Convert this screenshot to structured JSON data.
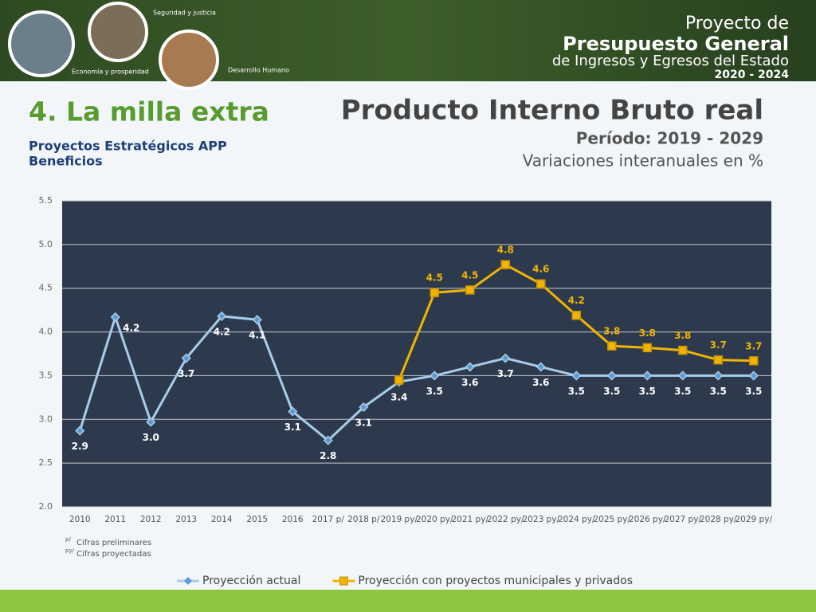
{
  "header": {
    "brand_line1": "Proyecto de",
    "brand_line2": "Presupuesto General",
    "brand_line3": "de Ingresos y Egresos del Estado",
    "brand_years": "2020 - 2024",
    "badges": [
      "Seguridad y justicia",
      "Economía y prosperidad",
      "Desarrollo Humano"
    ]
  },
  "section": {
    "title": "4. La milla extra",
    "subtitle1": "Proyectos Estratégicos APP",
    "subtitle2": "Beneficios"
  },
  "chart_data": {
    "type": "line",
    "title": "Producto Interno Bruto real",
    "subtitle": "Período: 2019 - 2029",
    "unit_note": "Variaciones interanuales en %",
    "categories": [
      "2010",
      "2011",
      "2012",
      "2013",
      "2014",
      "2015",
      "2016",
      "2017 p/",
      "2018 p/",
      "2019 py/",
      "2020 py/",
      "2021 py/",
      "2022 py/",
      "2023 py/",
      "2024 py/",
      "2025 py/",
      "2026 py/",
      "2027 py/",
      "2028 py/",
      "2029 py/"
    ],
    "series": [
      {
        "name": "Proyección actual",
        "color": "#a9cce8",
        "marker_color": "#5b9bd5",
        "marker": "diamond",
        "values": [
          2.87,
          4.17,
          2.97,
          3.7,
          4.18,
          4.14,
          3.09,
          2.76,
          3.14,
          3.43,
          3.5,
          3.6,
          3.7,
          3.6,
          3.5,
          3.5,
          3.5,
          3.5,
          3.5,
          3.5
        ],
        "value_labels": [
          "2.9",
          "4.2",
          "3.0",
          "3.7",
          "4.2",
          "4.1",
          "3.1",
          "2.8",
          "3.1",
          "3.4",
          "3.5",
          "3.6",
          "3.7",
          "3.6",
          "3.5",
          "3.5",
          "3.5",
          "3.5",
          "3.5",
          "3.5"
        ]
      },
      {
        "name": "Proyección con proyectos municipales y privados",
        "color": "#f0b400",
        "marker_color": "#c79200",
        "marker": "square",
        "values": [
          null,
          null,
          null,
          null,
          null,
          null,
          null,
          null,
          null,
          3.45,
          4.45,
          4.48,
          4.77,
          4.55,
          4.19,
          3.84,
          3.82,
          3.79,
          3.68,
          3.67
        ],
        "value_labels": [
          null,
          null,
          null,
          null,
          null,
          null,
          null,
          null,
          null,
          null,
          "4.5",
          "4.5",
          "4.8",
          "4.6",
          "4.2",
          "3.8",
          "3.8",
          "3.8",
          "3.7",
          "3.7"
        ]
      }
    ],
    "ylim": [
      2.0,
      5.5
    ],
    "yticks": [
      {
        "value": 2.0,
        "label": "2.0"
      },
      {
        "value": 2.5,
        "label": "2.5"
      },
      {
        "value": 3.0,
        "label": "3.0"
      },
      {
        "value": 3.5,
        "label": "3.5"
      },
      {
        "value": 4.0,
        "label": "4.0"
      },
      {
        "value": 4.5,
        "label": "4.5"
      },
      {
        "value": 5.0,
        "label": "5.0"
      },
      {
        "value": 5.5,
        "label": "5.5"
      }
    ],
    "grid": true,
    "notes": [
      {
        "mark": "p/",
        "text": "Cifras preliminares"
      },
      {
        "mark": "py/",
        "text": "Cifras proyectadas"
      }
    ]
  }
}
